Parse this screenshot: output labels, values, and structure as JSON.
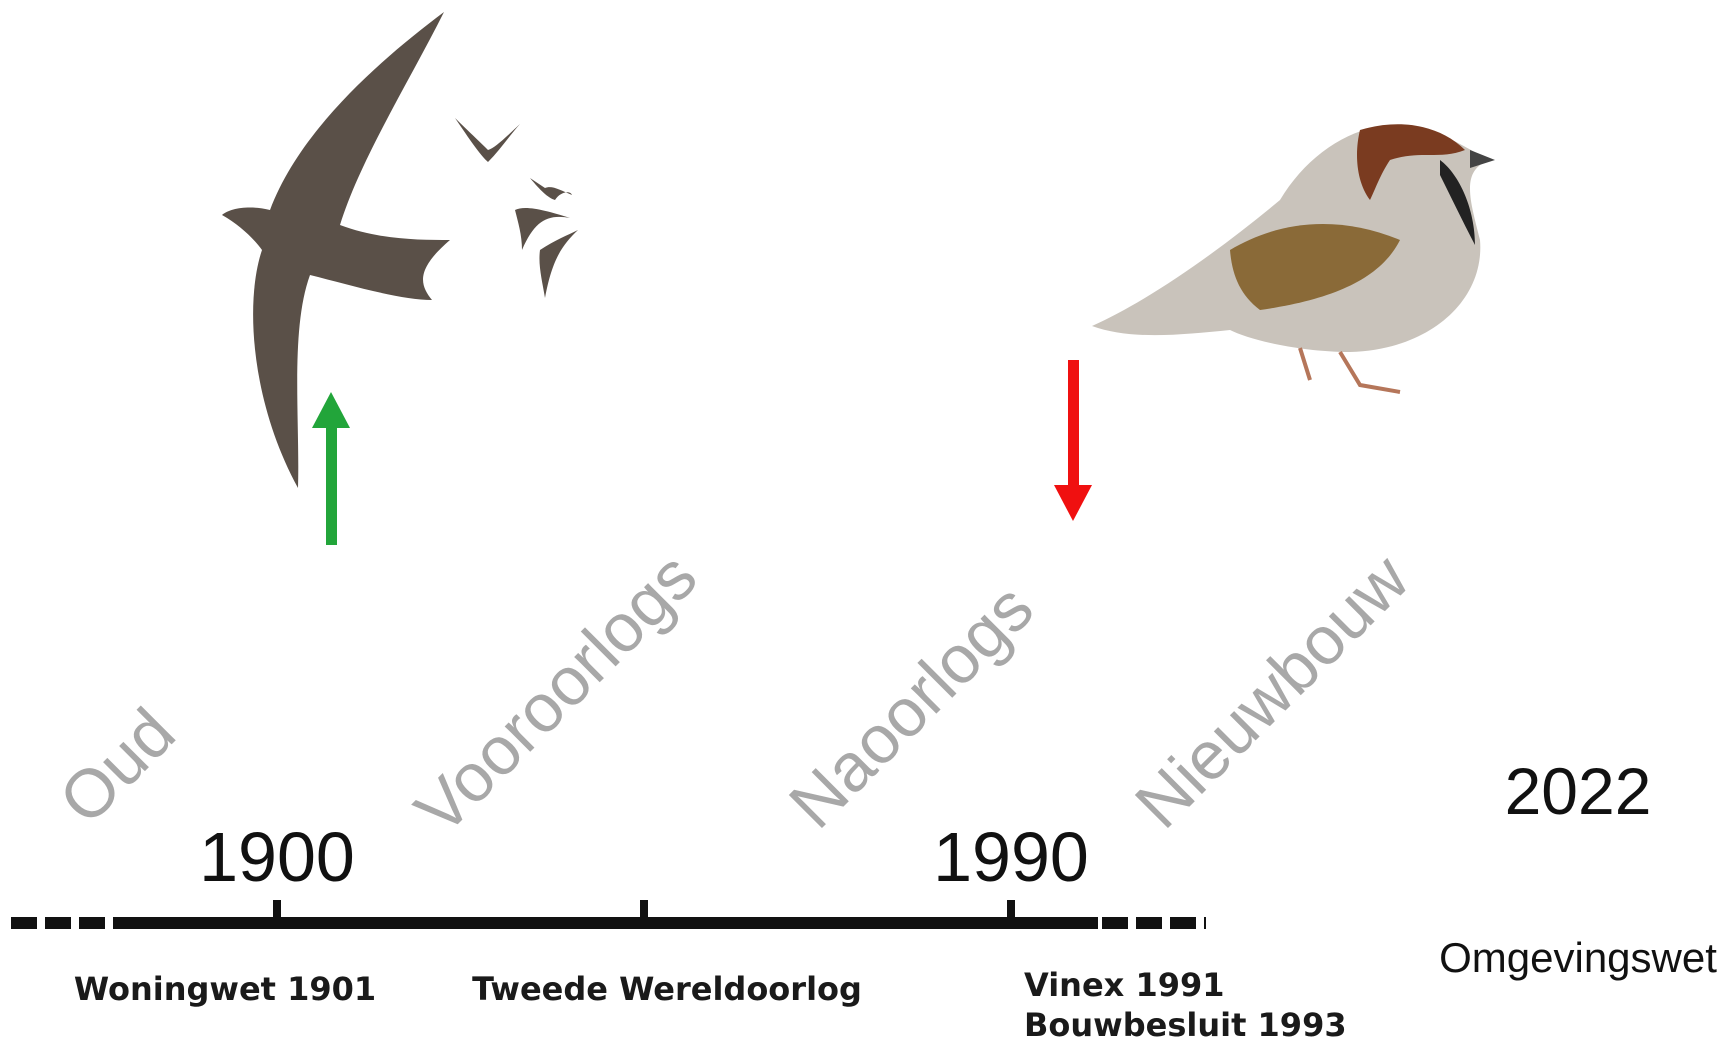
{
  "eras": [
    "Oud",
    "Vooroorlogs",
    "Naoorlogs",
    "Nieuwbouw"
  ],
  "years": [
    "1900",
    "1990",
    "2022"
  ],
  "events": [
    "Woningwet 1901",
    "Tweede Wereldoorlog",
    "Vinex 1991",
    "Bouwbesluit 1993",
    "Omgevingswet"
  ]
}
